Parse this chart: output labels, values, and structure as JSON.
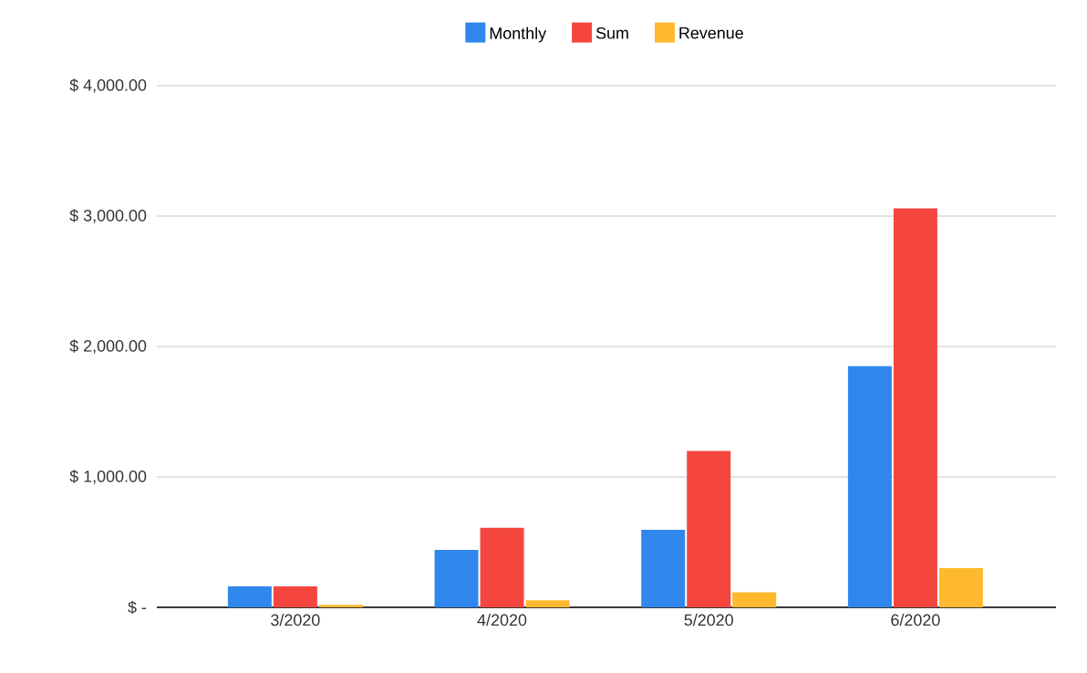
{
  "chart_data": {
    "type": "bar",
    "categories": [
      "3/2020",
      "4/2020",
      "5/2020",
      "6/2020"
    ],
    "series": [
      {
        "name": "Monthly",
        "color": "#2f87ee",
        "values": [
          160,
          440,
          595,
          1850
        ]
      },
      {
        "name": "Sum",
        "color": "#f4463f",
        "values": [
          160,
          610,
          1200,
          3060
        ]
      },
      {
        "name": "Revenue",
        "color": "#ffb92e",
        "values": [
          20,
          55,
          115,
          300
        ]
      }
    ],
    "ylim": [
      0,
      4000
    ],
    "yticks": [
      {
        "value": 0,
        "label": "$ -"
      },
      {
        "value": 1000,
        "label": "$ 1,000.00"
      },
      {
        "value": 2000,
        "label": "$ 2,000.00"
      },
      {
        "value": 3000,
        "label": "$ 3,000.00"
      },
      {
        "value": 4000,
        "label": "$ 4,000.00"
      }
    ],
    "grid": "y",
    "legend": "top"
  }
}
